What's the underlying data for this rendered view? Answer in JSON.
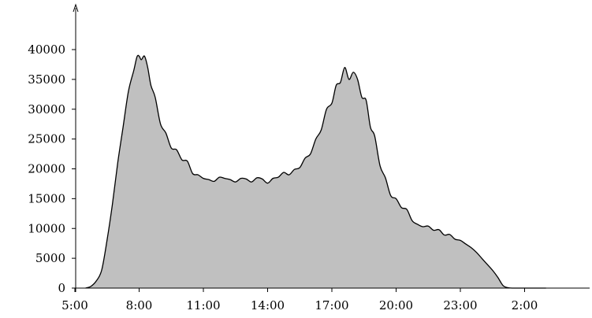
{
  "chart_data": {
    "type": "area",
    "title": "",
    "xlabel": "",
    "ylabel": "",
    "x_unit": "hours since midnight",
    "xlim": [
      5.0,
      30.0
    ],
    "ylim": [
      0,
      47000
    ],
    "x_ticks": [
      5,
      8,
      11,
      14,
      17,
      20,
      23,
      26
    ],
    "x_tick_labels": [
      "5:00",
      "8:00",
      "11:00",
      "14:00",
      "17:00",
      "20:00",
      "23:00",
      "2:00"
    ],
    "y_ticks": [
      0,
      5000,
      10000,
      15000,
      20000,
      25000,
      30000,
      35000,
      40000
    ],
    "y_tick_labels": [
      "0",
      "5000",
      "10000",
      "15000",
      "20000",
      "25000",
      "30000",
      "35000",
      "40000"
    ],
    "grid": false,
    "colors": {
      "fill": "#c0c0c0",
      "line": "#000000"
    },
    "series": [
      {
        "x": [
          5.5,
          5.75,
          6.0,
          6.25,
          6.5,
          6.75,
          7.0,
          7.25,
          7.5,
          7.75,
          7.9,
          8.0,
          8.1,
          8.25,
          8.4,
          8.55,
          8.75,
          9.0,
          9.25,
          9.5,
          9.75,
          10.0,
          10.25,
          10.5,
          10.75,
          11.0,
          11.25,
          11.5,
          11.75,
          12.0,
          12.25,
          12.5,
          12.75,
          13.0,
          13.25,
          13.5,
          13.75,
          14.0,
          14.25,
          14.5,
          14.75,
          15.0,
          15.25,
          15.5,
          15.75,
          16.0,
          16.25,
          16.5,
          16.75,
          17.0,
          17.2,
          17.4,
          17.6,
          17.8,
          18.0,
          18.2,
          18.4,
          18.6,
          18.8,
          19.0,
          19.25,
          19.5,
          19.75,
          20.0,
          20.25,
          20.5,
          20.75,
          21.0,
          21.25,
          21.5,
          21.75,
          22.0,
          22.25,
          22.5,
          22.75,
          23.0,
          23.25,
          23.5,
          23.75,
          24.0,
          24.25,
          24.5,
          24.75,
          25.0,
          25.25,
          25.5,
          25.75,
          26.0,
          26.25,
          26.5,
          27.0
        ],
        "values": [
          0,
          300,
          1200,
          3000,
          8000,
          14000,
          21000,
          27000,
          33000,
          36500,
          38800,
          38900,
          38300,
          38900,
          37000,
          34000,
          32000,
          27500,
          26000,
          23500,
          23200,
          21500,
          21300,
          19200,
          19000,
          18400,
          18200,
          17900,
          18600,
          18400,
          18200,
          17800,
          18400,
          18300,
          17800,
          18500,
          18300,
          17600,
          18400,
          18600,
          19400,
          19000,
          19900,
          20200,
          21800,
          22500,
          25000,
          26500,
          30000,
          31000,
          34000,
          34500,
          37000,
          35000,
          36200,
          35000,
          32000,
          31500,
          27000,
          25500,
          20500,
          18500,
          15500,
          15000,
          13500,
          13200,
          11300,
          10700,
          10300,
          10400,
          9700,
          9800,
          8900,
          9000,
          8200,
          8000,
          7400,
          6800,
          6000,
          5000,
          4000,
          3000,
          1800,
          400,
          50,
          0,
          0,
          0,
          0,
          0,
          0
        ]
      }
    ]
  }
}
